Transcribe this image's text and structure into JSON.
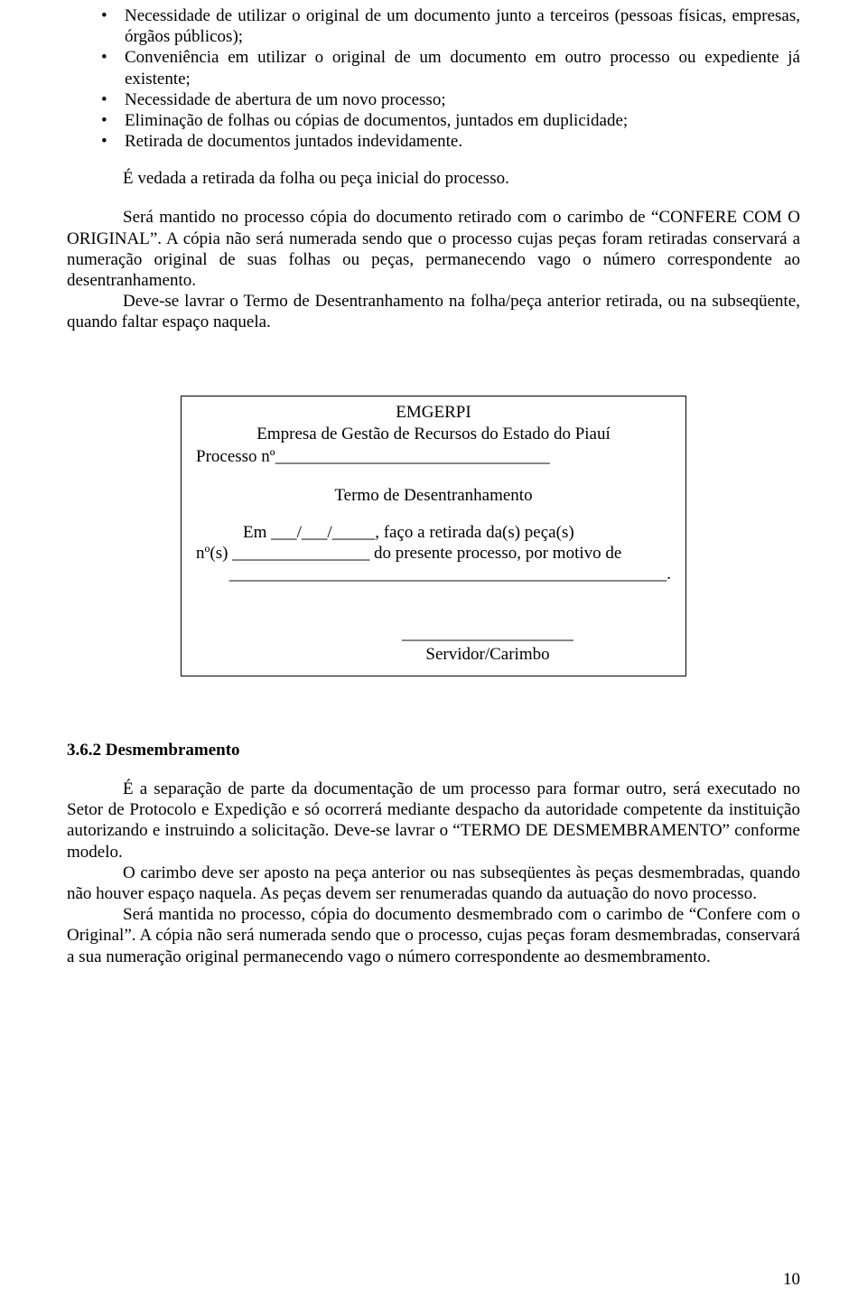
{
  "colors": {
    "text": "#000000",
    "background": "#ffffff",
    "border": "#000000"
  },
  "typography": {
    "family": "Times New Roman",
    "body_size_pt": 14
  },
  "bullets": [
    "Necessidade de utilizar o original de um documento junto a terceiros (pessoas físicas, empresas, órgãos públicos);",
    "Conveniência em utilizar o original de um documento em outro processo ou expediente já existente;",
    "Necessidade de abertura de um novo processo;",
    "Eliminação de folhas ou cópias de documentos, juntados em duplicidade;",
    "Retirada de documentos juntados indevidamente."
  ],
  "para1": "É vedada a retirada da folha ou peça inicial do processo.",
  "para2": "Será mantido no processo cópia do documento retirado com o carimbo de “CONFERE COM O ORIGINAL”. A cópia não será numerada sendo que o processo cujas peças foram retiradas conservará a numeração original de suas folhas ou peças, permanecendo vago o número correspondente ao desentranhamento.",
  "para3": "Deve-se lavrar o Termo de Desentranhamento na folha/peça anterior retirada, ou na subseqüente, quando faltar espaço naquela.",
  "box": {
    "org": "EMGERPI",
    "org_full": "Empresa de Gestão de Recursos do Estado do Piauí",
    "processo_label": "Processo nº",
    "processo_line": "________________________________",
    "term_title": "Termo de Desentranhamento",
    "line1": "Em ___/___/_____, faço a retirada da(s) peça(s)",
    "line2": "nº(s) ________________ do presente processo, por motivo de",
    "line3": "___________________________________________________.",
    "sign_line": "____________________",
    "sign_label": "Servidor/Carimbo"
  },
  "section_heading": "3.6.2 Desmembramento",
  "para4": "É a separação de parte da documentação de um processo para formar outro, será executado no Setor de Protocolo e Expedição e só ocorrerá mediante despacho da autoridade competente da instituição autorizando e instruindo a solicitação. Deve-se lavrar o “TERMO DE DESMEMBRAMENTO” conforme modelo.",
  "para5": "O carimbo deve ser aposto na peça anterior ou nas subseqüentes às peças desmembradas, quando não houver espaço naquela. As peças devem ser renumeradas quando da autuação do novo processo.",
  "para6": "Será mantida no processo, cópia do documento desmembrado com o carimbo de “Confere com o Original”. A cópia não será numerada sendo que o processo, cujas peças foram desmembradas, conservará a sua numeração original permanecendo vago o número correspondente ao desmembramento.",
  "page_number": "10"
}
